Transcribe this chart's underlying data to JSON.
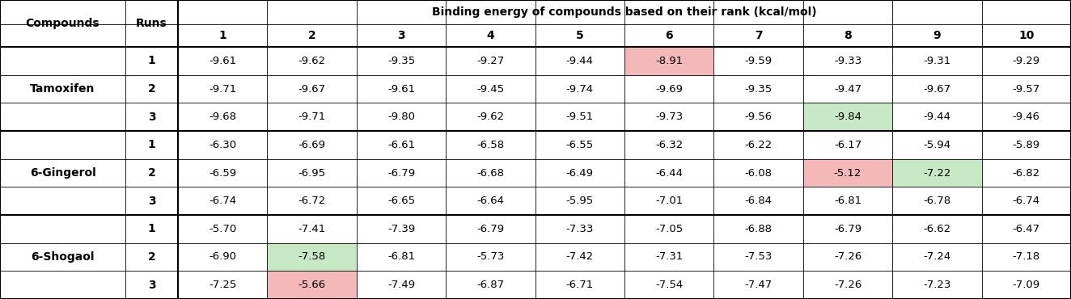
{
  "title": "Binding energy of compounds based on their rank (kcal/mol)",
  "compounds": [
    "Tamoxifen",
    "6-Gingerol",
    "6-Shogaol"
  ],
  "data": {
    "Tamoxifen": [
      [
        -9.61,
        -9.62,
        -9.35,
        -9.27,
        -9.44,
        -8.91,
        -9.59,
        -9.33,
        -9.31,
        -9.29
      ],
      [
        -9.71,
        -9.67,
        -9.61,
        -9.45,
        -9.74,
        -9.69,
        -9.35,
        -9.47,
        -9.67,
        -9.57
      ],
      [
        -9.68,
        -9.71,
        -9.8,
        -9.62,
        -9.51,
        -9.73,
        -9.56,
        -9.84,
        -9.44,
        -9.46
      ]
    ],
    "6-Gingerol": [
      [
        -6.3,
        -6.69,
        -6.61,
        -6.58,
        -6.55,
        -6.32,
        -6.22,
        -6.17,
        -5.94,
        -5.89
      ],
      [
        -6.59,
        -6.95,
        -6.79,
        -6.68,
        -6.49,
        -6.44,
        -6.08,
        -5.12,
        -7.22,
        -6.82
      ],
      [
        -6.74,
        -6.72,
        -6.65,
        -6.64,
        -5.95,
        -7.01,
        -6.84,
        -6.81,
        -6.78,
        -6.74
      ]
    ],
    "6-Shogaol": [
      [
        -5.7,
        -7.41,
        -7.39,
        -6.79,
        -7.33,
        -7.05,
        -6.88,
        -6.79,
        -6.62,
        -6.47
      ],
      [
        -6.9,
        -7.58,
        -6.81,
        -5.73,
        -7.42,
        -7.31,
        -7.53,
        -7.26,
        -7.24,
        -7.18
      ],
      [
        -7.25,
        -5.66,
        -7.49,
        -6.87,
        -6.71,
        -7.54,
        -7.47,
        -7.26,
        -7.23,
        -7.09
      ]
    ]
  },
  "highlights_red": [
    [
      "Tamoxifen",
      0,
      5
    ],
    [
      "6-Gingerol",
      1,
      7
    ],
    [
      "6-Shogaol",
      2,
      1
    ]
  ],
  "highlights_green": [
    [
      "Tamoxifen",
      2,
      7
    ],
    [
      "6-Gingerol",
      1,
      8
    ],
    [
      "6-Shogaol",
      1,
      1
    ]
  ],
  "red_color": "#f4b8b8",
  "green_color": "#c6e8c4",
  "figwidth": 13.24,
  "figheight": 3.7,
  "dpi": 100
}
